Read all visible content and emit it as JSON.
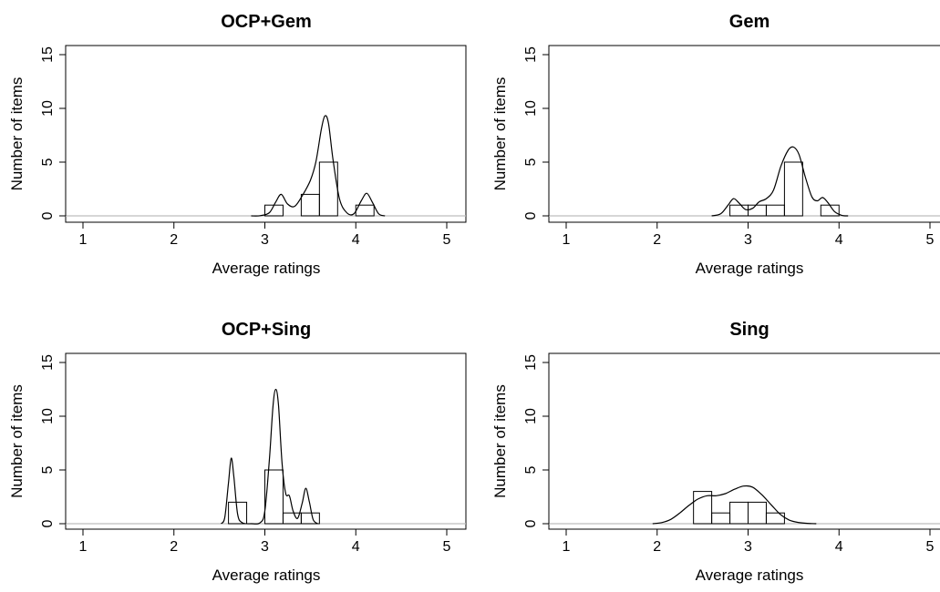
{
  "chart_data": [
    {
      "type": "bar",
      "title": "OCP+Gem",
      "xlabel": "Average ratings",
      "ylabel": "Number of items",
      "xlim": [
        1,
        5
      ],
      "ylim": [
        0,
        15
      ],
      "xticks": [
        "1",
        "2",
        "3",
        "4",
        "5"
      ],
      "yticks": [
        "0",
        "5",
        "10",
        "15"
      ],
      "histogram": [
        {
          "x0": 3.0,
          "x1": 3.2,
          "count": 1
        },
        {
          "x0": 3.4,
          "x1": 3.6,
          "count": 2
        },
        {
          "x0": 3.6,
          "x1": 3.8,
          "count": 5
        },
        {
          "x0": 4.0,
          "x1": 4.2,
          "count": 1
        }
      ],
      "density_curve": [
        [
          2.85,
          0
        ],
        [
          2.95,
          0.02
        ],
        [
          3.05,
          0.3
        ],
        [
          3.12,
          1.3
        ],
        [
          3.18,
          2.0
        ],
        [
          3.25,
          1.1
        ],
        [
          3.33,
          0.9
        ],
        [
          3.42,
          2.0
        ],
        [
          3.5,
          3.3
        ],
        [
          3.56,
          5.0
        ],
        [
          3.62,
          8.0
        ],
        [
          3.66,
          9.3
        ],
        [
          3.7,
          8.6
        ],
        [
          3.75,
          5.2
        ],
        [
          3.82,
          1.6
        ],
        [
          3.9,
          0.3
        ],
        [
          3.98,
          0.2
        ],
        [
          4.06,
          1.4
        ],
        [
          4.12,
          2.1
        ],
        [
          4.18,
          1.3
        ],
        [
          4.25,
          0.2
        ],
        [
          4.32,
          0
        ]
      ]
    },
    {
      "type": "bar",
      "title": "Gem",
      "xlabel": "Average ratings",
      "ylabel": "Number of items",
      "xlim": [
        1,
        5
      ],
      "ylim": [
        0,
        15
      ],
      "xticks": [
        "1",
        "2",
        "3",
        "4",
        "5"
      ],
      "yticks": [
        "0",
        "5",
        "10",
        "15"
      ],
      "histogram": [
        {
          "x0": 2.8,
          "x1": 3.0,
          "count": 1
        },
        {
          "x0": 3.0,
          "x1": 3.2,
          "count": 1
        },
        {
          "x0": 3.2,
          "x1": 3.4,
          "count": 1
        },
        {
          "x0": 3.4,
          "x1": 3.6,
          "count": 5
        },
        {
          "x0": 3.8,
          "x1": 4.0,
          "count": 1
        }
      ],
      "density_curve": [
        [
          2.6,
          0
        ],
        [
          2.7,
          0.2
        ],
        [
          2.78,
          1.0
        ],
        [
          2.84,
          1.6
        ],
        [
          2.9,
          1.2
        ],
        [
          2.97,
          0.6
        ],
        [
          3.05,
          0.7
        ],
        [
          3.12,
          1.3
        ],
        [
          3.2,
          1.6
        ],
        [
          3.28,
          2.4
        ],
        [
          3.36,
          4.6
        ],
        [
          3.44,
          6.1
        ],
        [
          3.5,
          6.4
        ],
        [
          3.56,
          5.7
        ],
        [
          3.63,
          3.6
        ],
        [
          3.7,
          1.8
        ],
        [
          3.76,
          1.4
        ],
        [
          3.82,
          1.7
        ],
        [
          3.88,
          1.2
        ],
        [
          3.95,
          0.4
        ],
        [
          4.03,
          0.05
        ],
        [
          4.1,
          0
        ]
      ]
    },
    {
      "type": "bar",
      "title": "OCP+Sing",
      "xlabel": "Average ratings",
      "ylabel": "Number of items",
      "xlim": [
        1,
        5
      ],
      "ylim": [
        0,
        15
      ],
      "xticks": [
        "1",
        "2",
        "3",
        "4",
        "5"
      ],
      "yticks": [
        "0",
        "5",
        "10",
        "15"
      ],
      "histogram": [
        {
          "x0": 2.6,
          "x1": 2.8,
          "count": 2
        },
        {
          "x0": 3.0,
          "x1": 3.2,
          "count": 5
        },
        {
          "x0": 3.2,
          "x1": 3.4,
          "count": 1
        },
        {
          "x0": 3.4,
          "x1": 3.6,
          "count": 1
        }
      ],
      "density_curve": [
        [
          2.52,
          0
        ],
        [
          2.56,
          0.6
        ],
        [
          2.6,
          3.8
        ],
        [
          2.63,
          6.1
        ],
        [
          2.66,
          4.3
        ],
        [
          2.7,
          0.9
        ],
        [
          2.75,
          0.1
        ],
        [
          2.85,
          0
        ],
        [
          2.95,
          0.1
        ],
        [
          3.0,
          1.2
        ],
        [
          3.05,
          6.0
        ],
        [
          3.09,
          11.0
        ],
        [
          3.12,
          12.5
        ],
        [
          3.15,
          11.0
        ],
        [
          3.19,
          5.5
        ],
        [
          3.23,
          2.8
        ],
        [
          3.27,
          2.6
        ],
        [
          3.31,
          1.2
        ],
        [
          3.36,
          0.5
        ],
        [
          3.41,
          1.9
        ],
        [
          3.45,
          3.3
        ],
        [
          3.49,
          2.0
        ],
        [
          3.53,
          0.4
        ],
        [
          3.58,
          0
        ]
      ]
    },
    {
      "type": "bar",
      "title": "Sing",
      "xlabel": "Average ratings",
      "ylabel": "Number of items",
      "xlim": [
        1,
        5
      ],
      "ylim": [
        0,
        15
      ],
      "xticks": [
        "1",
        "2",
        "3",
        "4",
        "5"
      ],
      "yticks": [
        "0",
        "5",
        "10",
        "15"
      ],
      "histogram": [
        {
          "x0": 2.4,
          "x1": 2.6,
          "count": 3
        },
        {
          "x0": 2.6,
          "x1": 2.8,
          "count": 1
        },
        {
          "x0": 2.8,
          "x1": 3.0,
          "count": 2
        },
        {
          "x0": 3.0,
          "x1": 3.2,
          "count": 2
        },
        {
          "x0": 3.2,
          "x1": 3.4,
          "count": 1
        }
      ],
      "density_curve": [
        [
          1.95,
          0
        ],
        [
          2.05,
          0.1
        ],
        [
          2.15,
          0.4
        ],
        [
          2.25,
          1.0
        ],
        [
          2.35,
          1.7
        ],
        [
          2.45,
          2.3
        ],
        [
          2.55,
          2.6
        ],
        [
          2.65,
          2.6
        ],
        [
          2.75,
          2.8
        ],
        [
          2.85,
          3.2
        ],
        [
          2.95,
          3.5
        ],
        [
          3.05,
          3.4
        ],
        [
          3.15,
          2.7
        ],
        [
          3.25,
          1.8
        ],
        [
          3.35,
          0.9
        ],
        [
          3.45,
          0.35
        ],
        [
          3.55,
          0.12
        ],
        [
          3.65,
          0.03
        ],
        [
          3.75,
          0
        ]
      ]
    }
  ]
}
